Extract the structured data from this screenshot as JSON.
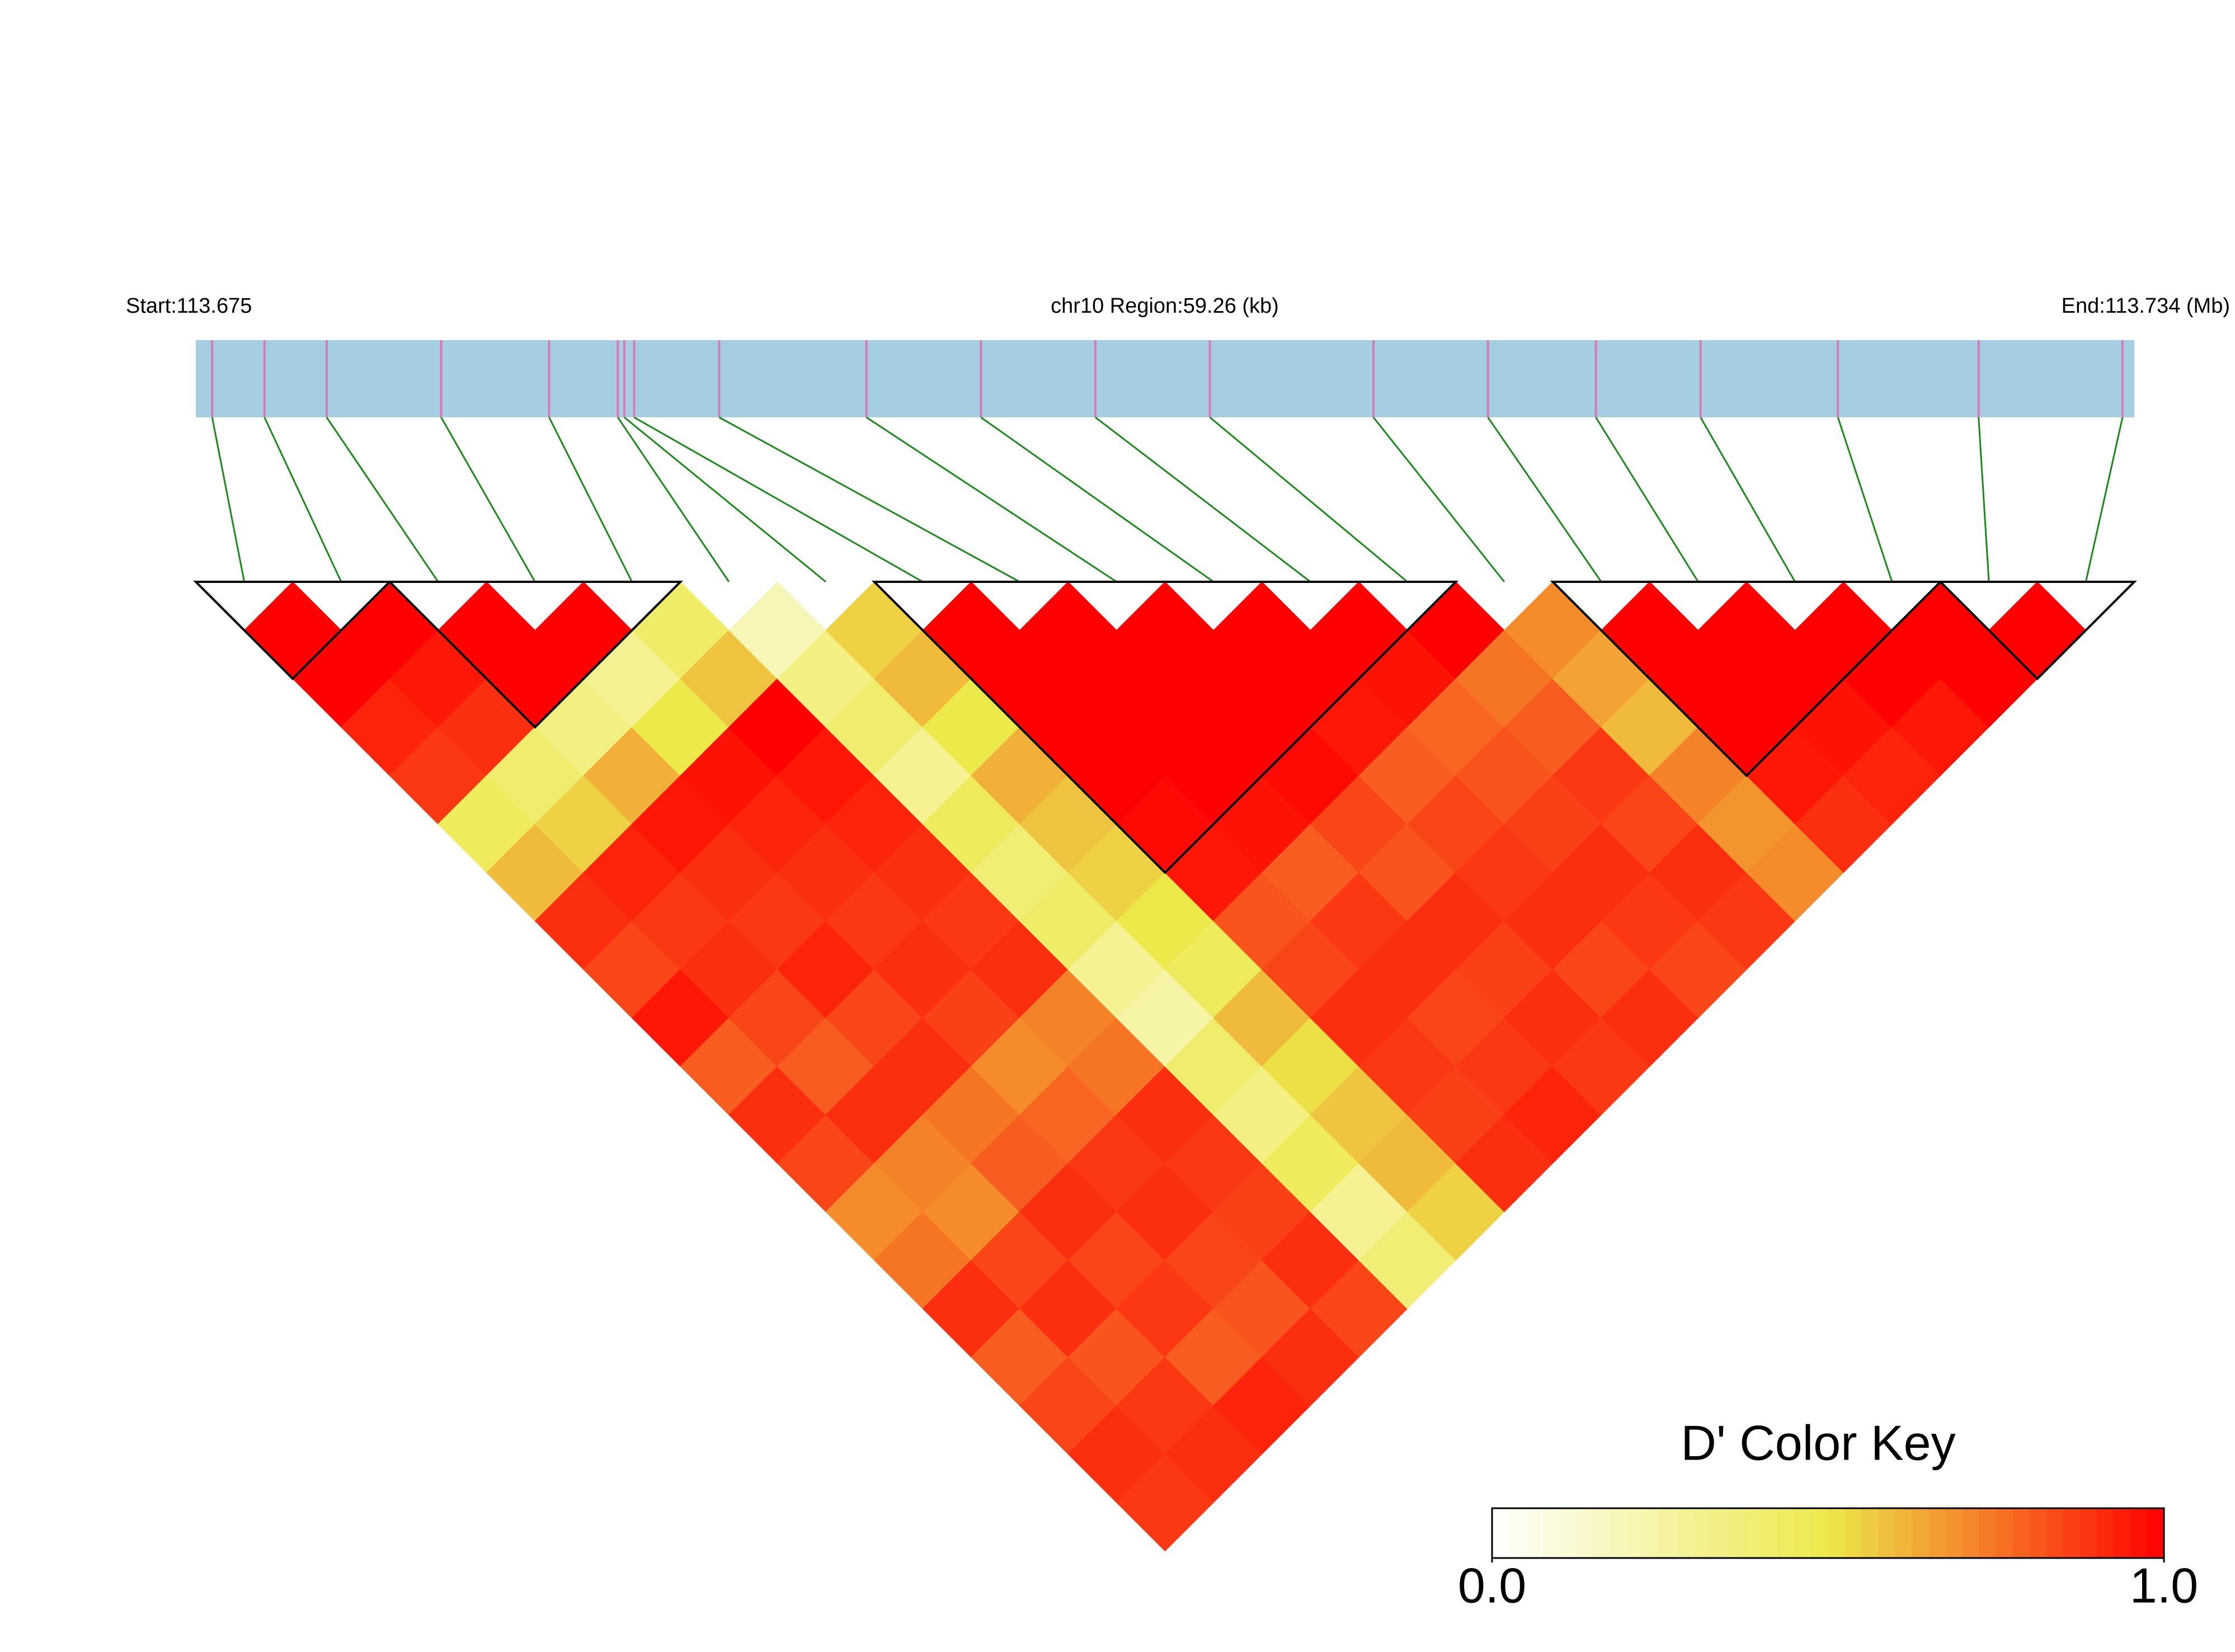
{
  "chart_data": {
    "type": "ld_heatmap",
    "start_label": "Start:113.675",
    "region_label": "chr10 Region:59.26 (kb)",
    "end_label": "End:113.734 (Mb)",
    "xlim": [
      0,
      59.26
    ],
    "positions": [
      0.5,
      2.1,
      4.0,
      7.5,
      10.8,
      12.9,
      13.1,
      13.4,
      16.0,
      20.5,
      24.0,
      27.5,
      31.0,
      36.0,
      39.5,
      42.8,
      46.0,
      50.2,
      54.5,
      58.9
    ],
    "ld": [
      [
        1,
        1,
        0.92,
        0.88,
        0.45,
        0.6,
        0.9,
        0.85,
        0.95,
        0.8,
        0.9,
        0.85,
        0.7,
        0.75,
        0.9,
        0.8,
        0.85,
        0.9,
        0.88
      ],
      [
        1,
        0.95,
        0.9,
        0.4,
        0.55,
        0.92,
        0.88,
        0.9,
        0.85,
        0.8,
        0.9,
        0.72,
        0.7,
        0.85,
        0.9,
        0.82,
        0.88,
        0.9
      ],
      [
        1,
        1,
        0.35,
        0.62,
        0.95,
        0.9,
        0.88,
        0.92,
        0.85,
        0.9,
        0.75,
        0.8,
        0.9,
        0.85,
        0.88,
        0.8,
        0.92
      ],
      [
        1,
        0.3,
        0.5,
        0.96,
        0.92,
        0.9,
        0.88,
        0.9,
        0.86,
        0.7,
        0.78,
        0.88,
        0.9,
        0.85,
        0.82,
        0.9
      ],
      [
        0.42,
        0.58,
        1,
        0.95,
        0.92,
        0.9,
        0.88,
        0.9,
        0.72,
        0.75,
        0.9,
        0.88,
        0.86,
        0.9,
        0.85
      ],
      [
        0.2,
        0.35,
        0.4,
        0.3,
        0.45,
        0.38,
        0.42,
        0.3,
        0.25,
        0.4,
        0.35,
        0.45,
        0.3,
        0.38
      ],
      [
        0.55,
        0.6,
        0.5,
        0.62,
        0.58,
        0.55,
        0.5,
        0.45,
        0.6,
        0.52,
        0.58,
        0.6,
        0.55
      ],
      [
        1,
        1,
        1,
        1,
        0.98,
        0.95,
        0.82,
        0.85,
        0.9,
        0.88,
        0.86,
        0.9
      ],
      [
        1,
        1,
        1,
        1,
        0.96,
        0.8,
        0.88,
        0.9,
        0.85,
        0.88,
        0.92
      ],
      [
        1,
        1,
        1,
        0.98,
        0.85,
        0.82,
        0.9,
        0.86,
        0.9,
        0.88
      ],
      [
        1,
        1,
        0.95,
        0.8,
        0.85,
        0.88,
        0.9,
        0.85,
        0.9
      ],
      [
        1,
        0.96,
        0.78,
        0.82,
        0.86,
        0.9,
        0.88,
        0.85
      ],
      [
        1,
        0.75,
        0.8,
        0.88,
        0.85,
        0.9,
        0.88
      ],
      [
        0.7,
        0.65,
        0.6,
        0.72,
        0.68,
        0.7
      ],
      [
        1,
        1,
        1,
        0.95,
        0.9
      ],
      [
        1,
        1,
        0.96,
        0.92
      ],
      [
        1,
        1,
        0.95
      ],
      [
        1,
        1
      ],
      [
        1
      ]
    ],
    "blocks": [
      [
        0,
        1
      ],
      [
        2,
        4
      ],
      [
        7,
        12
      ],
      [
        14,
        17
      ],
      [
        18,
        19
      ]
    ],
    "colorscale": [
      "#ffffff",
      "#ece94a",
      "#ff0000"
    ],
    "legend_title": "D' Color Key",
    "clim": [
      0,
      1
    ],
    "cticks": [
      {
        "value": 0,
        "label": "0.0"
      },
      {
        "value": 1,
        "label": "1.0"
      }
    ]
  }
}
